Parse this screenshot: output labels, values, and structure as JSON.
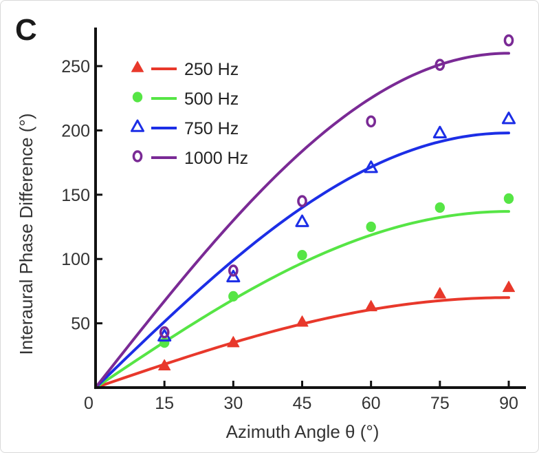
{
  "panel_label": "C",
  "chart_data": {
    "type": "scatter",
    "xlabel": "Azimuth Angle θ (°)",
    "ylabel": "Interaural Phase Difference (°)",
    "xlim": [
      0,
      90
    ],
    "ylim": [
      0,
      280
    ],
    "x_ticks": [
      0,
      15,
      30,
      45,
      60,
      75,
      90
    ],
    "y_ticks": [
      50,
      100,
      150,
      200,
      250
    ],
    "grid": false,
    "legend_position": "top-left",
    "x": [
      15,
      30,
      45,
      60,
      75,
      90
    ],
    "series": [
      {
        "name": "250 Hz",
        "color": "#e8382b",
        "marker": "triangle",
        "values": [
          17,
          35,
          51,
          63,
          73,
          78
        ],
        "fit_max": 70
      },
      {
        "name": "500 Hz",
        "color": "#56e545",
        "marker": "circle",
        "values": [
          35,
          71,
          103,
          125,
          140,
          147
        ],
        "fit_max": 137
      },
      {
        "name": "750 Hz",
        "color": "#1c2ee6",
        "marker": "open-triangle",
        "values": [
          40,
          86,
          129,
          171,
          198,
          209
        ],
        "fit_max": 198
      },
      {
        "name": "1000 Hz",
        "color": "#7a2a95",
        "marker": "open-circle",
        "values": [
          43,
          91,
          145,
          207,
          251,
          270
        ],
        "fit_max": 260
      }
    ]
  }
}
